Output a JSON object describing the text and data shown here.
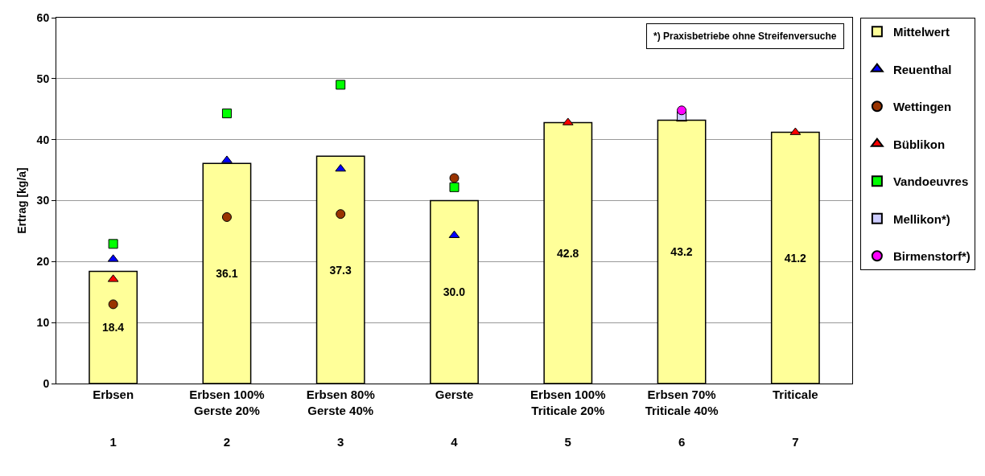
{
  "chart_data": {
    "type": "bar",
    "ylabel": "Ertrag [kg/a]",
    "categories": [
      "Erbsen\n\n\n1",
      "Erbsen 100%\nGerste 20%\n\n2",
      "Erbsen 80%\nGerste 40%\n\n3",
      "Gerste\n\n\n4",
      "Erbsen 100%\nTriticale 20%\n\n5",
      "Erbsen 70%\nTriticale 40%\n\n6",
      "Triticale\n\n\n7"
    ],
    "series": [
      {
        "name": "Mittelwert",
        "color": "#ffff99",
        "values": [
          18.4,
          36.1,
          37.3,
          30.0,
          42.8,
          43.2,
          41.2
        ],
        "value_labels": [
          "18.4",
          "36.1",
          "37.3",
          "30.0",
          "42.8",
          "43.2",
          "41.2"
        ]
      },
      {
        "name": "Reuenthal",
        "type": "scatter",
        "marker": "triangle",
        "color": "#0000ff",
        "values": [
          20.4,
          36.6,
          35.2,
          24.3,
          null,
          null,
          null
        ]
      },
      {
        "name": "Wettingen",
        "type": "scatter",
        "marker": "circle",
        "color": "#993300",
        "values": [
          13.0,
          27.3,
          27.8,
          33.7,
          null,
          null,
          null
        ]
      },
      {
        "name": "Büblikon",
        "type": "scatter",
        "marker": "triangle",
        "color": "#ff0000",
        "values": [
          17.1,
          null,
          null,
          null,
          42.8,
          43.4,
          41.2
        ]
      },
      {
        "name": "Vandoeuvres",
        "type": "scatter",
        "marker": "square",
        "color": "#00ff00",
        "values": [
          22.9,
          44.3,
          49.0,
          32.2,
          null,
          null,
          null
        ]
      },
      {
        "name": "Mellikon*)",
        "type": "scatter",
        "marker": "square",
        "color": "#ccccff",
        "values": [
          null,
          null,
          null,
          null,
          null,
          43.9,
          null
        ]
      },
      {
        "name": "Birmenstorf*)",
        "type": "scatter",
        "marker": "circle",
        "color": "#ff00ff",
        "values": [
          null,
          null,
          null,
          null,
          null,
          44.8,
          null
        ]
      }
    ],
    "ylim": [
      0,
      60
    ],
    "yticks": [
      0,
      10,
      20,
      30,
      40,
      50,
      60
    ],
    "grid": "y",
    "legend": "right",
    "annotations": [
      "*) Praxisbetriebe ohne Streifenversuche"
    ]
  }
}
